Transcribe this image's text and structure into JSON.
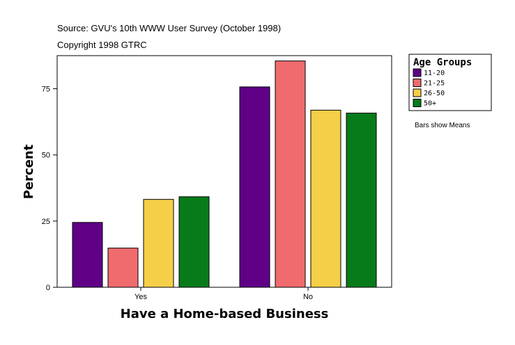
{
  "header": {
    "source": "Source: GVU's 10th WWW User Survey (October 1998)",
    "copyright": "Copyright 1998 GTRC"
  },
  "legend": {
    "title": "Age Groups"
  },
  "note": "Bars show Means",
  "colors": {
    "11-20": "#5f0087",
    "21-25": "#f06b6e",
    "26-50": "#f5cf47",
    "50+": "#077b1a"
  },
  "chart_data": {
    "type": "bar",
    "xlabel": "Have a Home-based Business",
    "ylabel": "Percent",
    "categories": [
      "Yes",
      "No"
    ],
    "series": [
      {
        "name": "11-20",
        "values": [
          24.5,
          75.7
        ]
      },
      {
        "name": "21-25",
        "values": [
          14.8,
          85.5
        ]
      },
      {
        "name": "26-50",
        "values": [
          33.2,
          66.9
        ]
      },
      {
        "name": "50+",
        "values": [
          34.2,
          65.8
        ]
      }
    ],
    "yticks": [
      0,
      25,
      50,
      75
    ],
    "ylim": [
      0,
      87.5
    ],
    "legend_position": "top-right",
    "grid": false
  }
}
